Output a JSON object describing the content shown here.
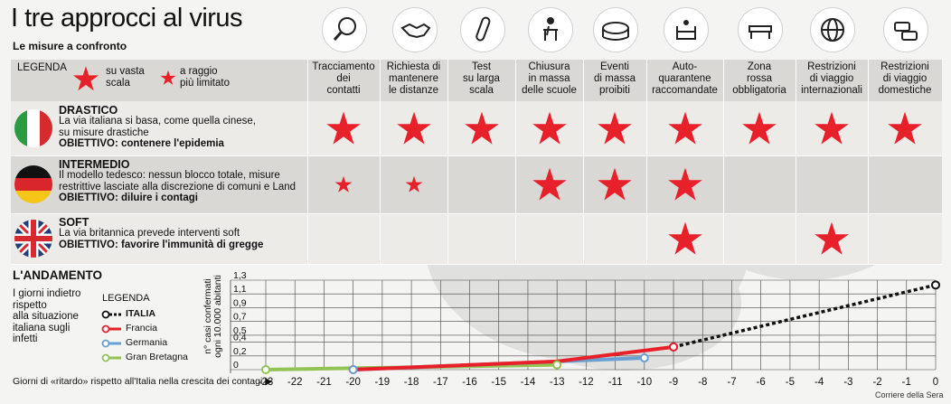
{
  "header": {
    "title": "I tre approcci al virus",
    "subtitle": "Le misure a confronto"
  },
  "legend": {
    "heading": "LEGENDA",
    "large_star": "su vasta\nscala",
    "small_star": "a raggio\npiù limitato"
  },
  "columns": [
    {
      "label": "Tracciamento\ndei\ncontatti",
      "icon": "magnifier-icon"
    },
    {
      "label": "Richiesta di\nmantenere\nle distanze",
      "icon": "handshake-icon"
    },
    {
      "label": "Test\nsu larga\nscala",
      "icon": "test-tube-icon"
    },
    {
      "label": "Chiusura\nin massa\ndelle scuole",
      "icon": "school-desk-icon"
    },
    {
      "label": "Eventi\ndi massa\nproibiti",
      "icon": "stadium-icon"
    },
    {
      "label": "Auto-\nquarantene\nraccomandate",
      "icon": "armchair-icon"
    },
    {
      "label": "Zona\nrossa\nobbligatoria",
      "icon": "roadblock-icon"
    },
    {
      "label": "Restrizioni\ndi viaggio\ninternazionali",
      "icon": "globe-icon"
    },
    {
      "label": "Restrizioni\ndi viaggio\ndomestiche",
      "icon": "traffic-cars-icon"
    }
  ],
  "rows": [
    {
      "title": "DRASTICO",
      "desc": "La via italiana si basa, come quella cinese,\nsu misure drastiche",
      "goal": "OBIETTIVO: contenere l'epidemia",
      "flag": "italy-flag",
      "marks": [
        "large",
        "large",
        "large",
        "large",
        "large",
        "large",
        "large",
        "large",
        "large"
      ]
    },
    {
      "title": "INTERMEDIO",
      "desc": "Il modello tedesco: nessun blocco totale, misure\nrestrittive lasciate alla discrezione di comuni e Land",
      "goal": "OBIETTIVO: diluire i contagi",
      "flag": "germany-flag",
      "marks": [
        "small",
        "small",
        "",
        "large",
        "large",
        "large",
        "",
        "",
        ""
      ]
    },
    {
      "title": "SOFT",
      "desc": "La via britannica prevede interventi soft",
      "goal": "OBIETTIVO: favorire l'immunità di gregge",
      "flag": "uk-flag",
      "marks": [
        "",
        "",
        "",
        "",
        "",
        "large",
        "",
        "large",
        ""
      ]
    }
  ],
  "trend": {
    "title": "L'ANDAMENTO",
    "desc": "I giorni indietro\nrispetto\nalla situazione\nitaliana sugli\ninfetti",
    "legend_heading": "LEGENDA",
    "y_axis_label": "n° casi confermati\nogni 10.000 abitanti",
    "x_axis_title": "Giorni di «ritardo» rispetto all'Italia nella crescita dei contagi ▶",
    "credit": "Corriere della Sera"
  },
  "chart_data": {
    "type": "line",
    "xlabel": "Giorni di «ritardo» rispetto all'Italia nella crescita dei contagi",
    "ylabel": "n° casi confermati ogni 10.000 abitanti",
    "x_ticks": [
      -23,
      -22,
      -21,
      -20,
      -19,
      -18,
      -17,
      -16,
      -15,
      -14,
      -13,
      -12,
      -11,
      -10,
      -9,
      -8,
      -7,
      -6,
      -5,
      -4,
      -3,
      -2,
      -1,
      0
    ],
    "x_tick_labels": [
      "-23",
      "-22",
      "-21",
      "-20",
      "-19",
      "-18",
      "-17",
      "-16",
      "-15",
      "-14",
      "-13",
      "-12",
      "-11",
      "-10",
      "-9",
      "-8",
      "-7",
      "-6",
      "-5",
      "-4",
      "-3",
      "-2",
      "-1",
      "0"
    ],
    "y_ticks": [
      0,
      0.2,
      0.4,
      0.5,
      0.7,
      0.9,
      1.1,
      1.3
    ],
    "y_tick_labels": [
      "0",
      "0,2",
      "0,4",
      "0,5",
      "0,7",
      "0,9",
      "1,1",
      "1,3"
    ],
    "xlim": [
      -23,
      0
    ],
    "ylim": [
      0,
      1.3
    ],
    "grid": true,
    "legend_position": "left",
    "series": [
      {
        "name": "ITALIA",
        "color": "#111111",
        "style": "dotted",
        "x": [
          -9,
          0
        ],
        "y": [
          0.33,
          1.23
        ],
        "end_markers": [
          -9,
          0
        ]
      },
      {
        "name": "Francia",
        "color": "#e8202a",
        "style": "solid",
        "x": [
          -20,
          -13,
          -9
        ],
        "y": [
          0.0,
          0.12,
          0.33
        ],
        "end_markers": [
          -20,
          -9
        ]
      },
      {
        "name": "Germania",
        "color": "#6a9fd1",
        "style": "solid",
        "x": [
          -20,
          -10
        ],
        "y": [
          0.0,
          0.17
        ],
        "end_markers": [
          -20,
          -10
        ]
      },
      {
        "name": "Gran Bretagna",
        "color": "#93c355",
        "style": "solid",
        "x": [
          -23,
          -13
        ],
        "y": [
          0.0,
          0.07
        ],
        "end_markers": [
          -23,
          -13
        ]
      }
    ]
  },
  "colors": {
    "star": "#e8202a",
    "band_dark": "#d9d8d4",
    "band_light": "#ecebe8"
  }
}
